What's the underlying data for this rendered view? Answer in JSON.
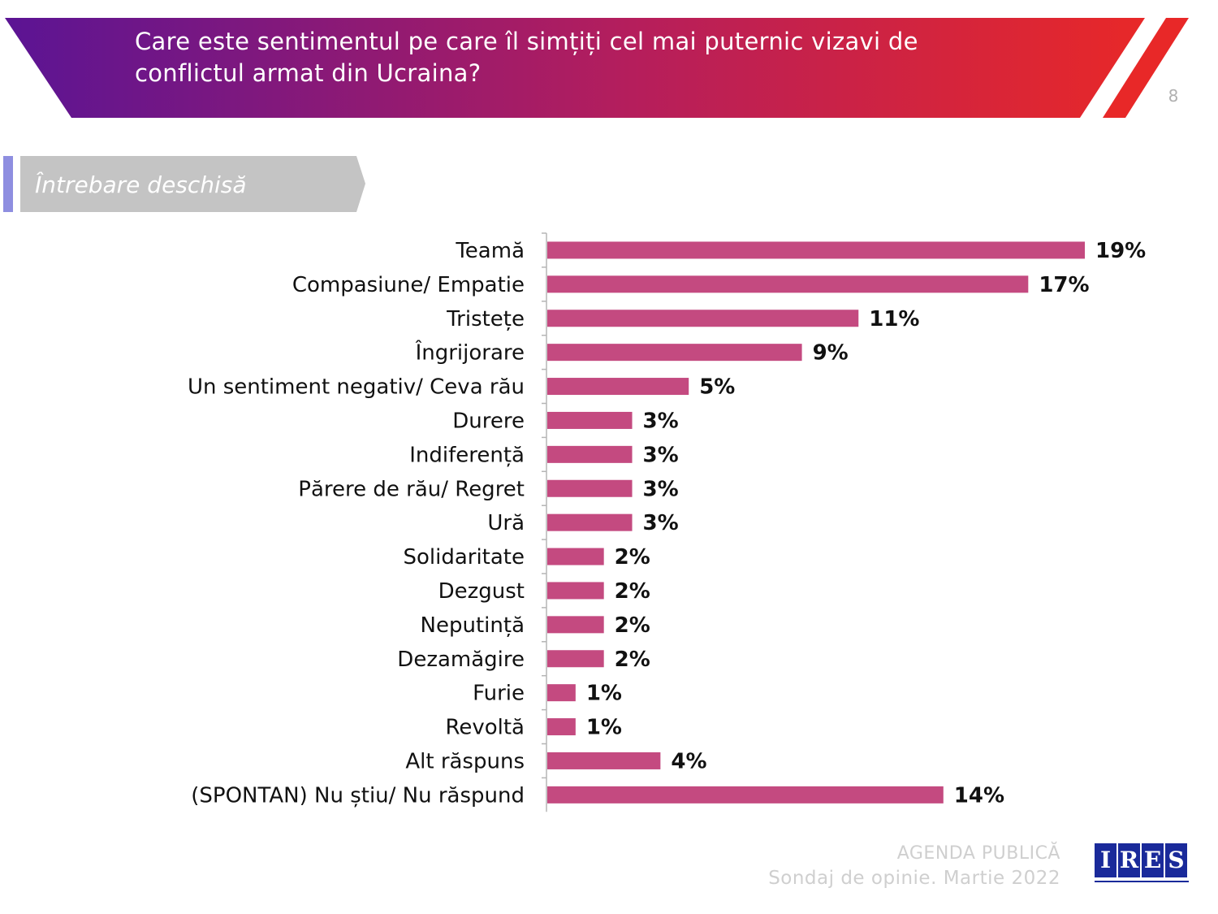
{
  "header": {
    "title": "Care este sentimentul pe care îl simțiți cel mai puternic vizavi de conflictul armat din Ucraina?",
    "page_number": "8",
    "gradient_start": "#5b1494",
    "gradient_end": "#e82828"
  },
  "tag": {
    "label": "Întrebare deschisă"
  },
  "chart_data": {
    "type": "bar",
    "orientation": "horizontal",
    "categories": [
      "Teamă",
      "Compasiune/ Empatie",
      "Tristețe",
      "Îngrijorare",
      "Un sentiment negativ/ Ceva rău",
      "Durere",
      "Indiferență",
      "Părere de rău/ Regret",
      "Ură",
      "Solidaritate",
      "Dezgust",
      "Neputință",
      "Dezamăgire",
      "Furie",
      "Revoltă",
      "Alt răspuns",
      "(SPONTAN) Nu știu/ Nu răspund"
    ],
    "values": [
      19,
      17,
      11,
      9,
      5,
      3,
      3,
      3,
      3,
      2,
      2,
      2,
      2,
      1,
      1,
      4,
      14
    ],
    "value_labels": [
      "19%",
      "17%",
      "11%",
      "9%",
      "5%",
      "3%",
      "3%",
      "3%",
      "3%",
      "2%",
      "2%",
      "2%",
      "2%",
      "1%",
      "1%",
      "4%",
      "14%"
    ],
    "unit": "%",
    "bar_color": "#c44a80",
    "xlim": [
      0,
      19
    ]
  },
  "footer": {
    "line1": "AGENDA PUBLICĂ",
    "line2": "Sondaj de opinie. Martie 2022",
    "logo_letters": [
      "I",
      "R",
      "E",
      "S"
    ]
  }
}
